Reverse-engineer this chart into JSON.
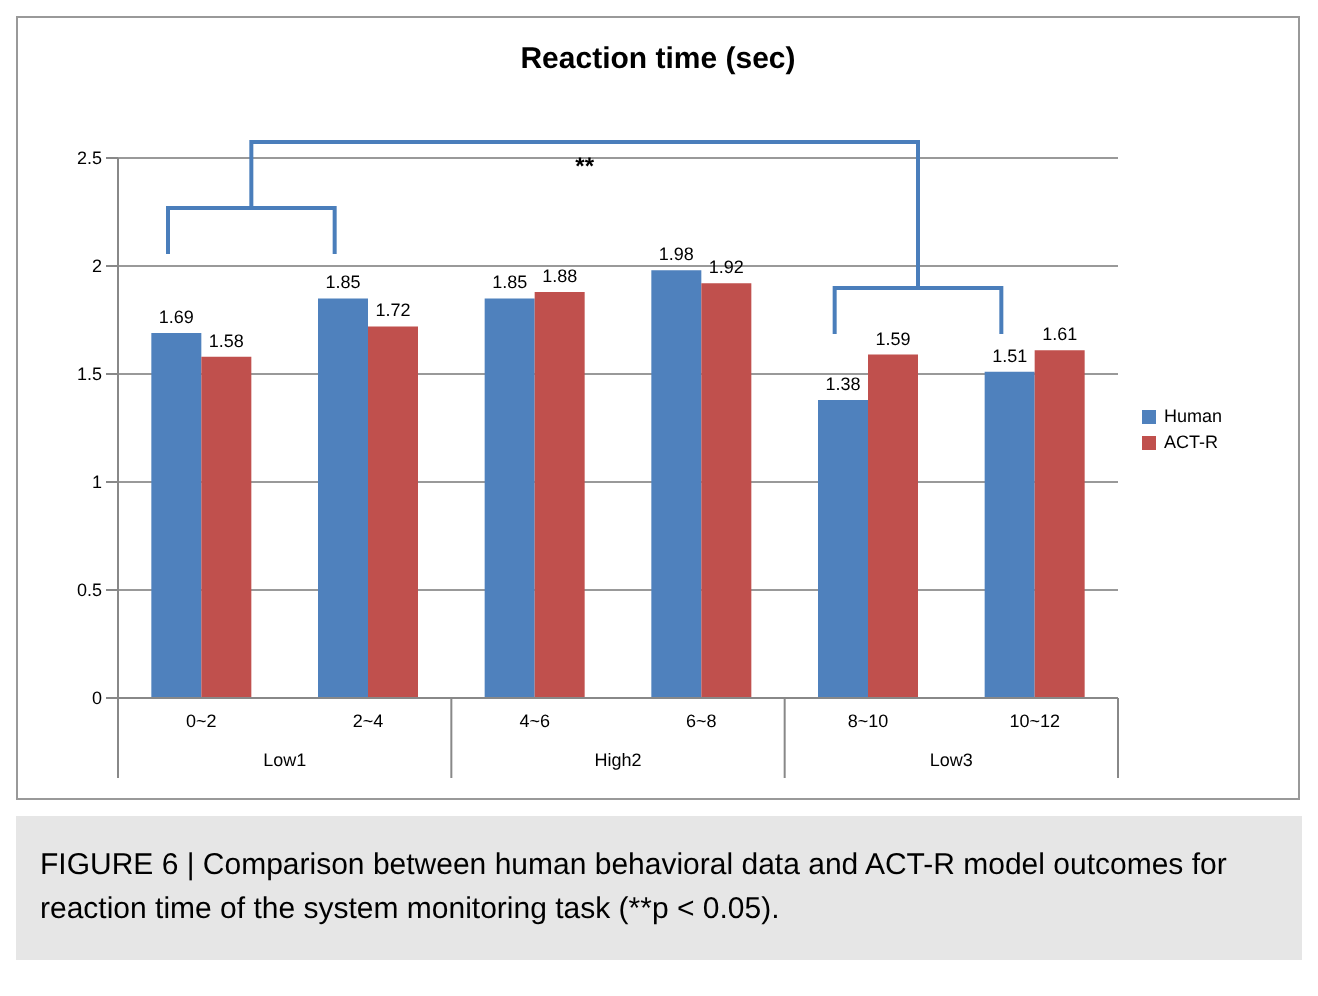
{
  "chart_data": {
    "type": "bar",
    "title": "Reaction time (sec)",
    "categories": [
      "0~2",
      "2~4",
      "4~6",
      "6~8",
      "8~10",
      "10~12"
    ],
    "series": [
      {
        "name": "Human",
        "color": "#4f81bd",
        "values": [
          1.69,
          1.85,
          1.85,
          1.98,
          1.38,
          1.51
        ]
      },
      {
        "name": "ACT-R",
        "color": "#c0504d",
        "values": [
          1.58,
          1.72,
          1.88,
          1.92,
          1.59,
          1.61
        ]
      }
    ],
    "ylim": [
      0,
      2.5
    ],
    "yticks": [
      0,
      0.5,
      1,
      1.5,
      2,
      2.5
    ],
    "grid": "y",
    "legend": "right",
    "data_labels": true,
    "annotations": [
      "**",
      "Low1",
      "High2",
      "Low3",
      "FIGURE 6 | Comparison between human behavioral data and ACT-R model outcomes for reaction time of the system monitoring task (**p < 0.05)."
    ]
  }
}
